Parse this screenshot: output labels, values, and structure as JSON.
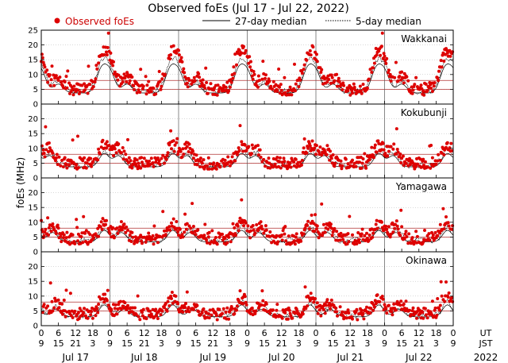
{
  "chart_data": {
    "type": "scatter",
    "title": "Observed foEs (Jul 17 - Jul 22, 2022)",
    "ylabel": "foEs (MHz)",
    "legend": {
      "observed": "Observed foEs",
      "median27": "27-day median",
      "median5": "5-day median"
    },
    "colors": {
      "observed": "#dd0000",
      "median27": "#000000",
      "median5": "#000000",
      "reference": "#b03030",
      "grid": "#b0b0b0"
    },
    "panels": [
      {
        "name": "Wakkanai",
        "ylim": [
          0,
          25
        ],
        "yticks": [
          "25",
          "20",
          "15",
          "10",
          "5",
          "0"
        ],
        "ref_lines": [
          8,
          5
        ]
      },
      {
        "name": "Kokubunji",
        "ylim": [
          0,
          25
        ],
        "yticks": [
          "20",
          "15",
          "10",
          "5",
          "0"
        ],
        "ref_lines": [
          8,
          5
        ]
      },
      {
        "name": "Yamagawa",
        "ylim": [
          0,
          25
        ],
        "yticks": [
          "20",
          "15",
          "10",
          "5",
          "0"
        ],
        "ref_lines": [
          8,
          5
        ]
      },
      {
        "name": "Okinawa",
        "ylim": [
          0,
          25
        ],
        "yticks": [
          "20",
          "15",
          "10",
          "5",
          "0"
        ],
        "ref_lines": [
          8,
          5
        ]
      }
    ],
    "x_axis": {
      "days": 6,
      "ut_ticks": [
        "0",
        "6",
        "12",
        "18",
        "0",
        "6",
        "12",
        "18",
        "0",
        "6",
        "12",
        "18",
        "0",
        "6",
        "12",
        "18",
        "0",
        "6",
        "12",
        "18",
        "0",
        "6",
        "12",
        "18",
        "0"
      ],
      "jst_ticks": [
        "9",
        "15",
        "21",
        "3",
        "9",
        "15",
        "21",
        "3",
        "9",
        "15",
        "21",
        "3",
        "9",
        "15",
        "21",
        "3",
        "9",
        "15",
        "21",
        "3",
        "9",
        "15",
        "21",
        "3",
        "9"
      ],
      "ut_label": "UT",
      "jst_label": "JST",
      "day_labels": [
        "Jul 17",
        "Jul 18",
        "Jul 19",
        "Jul 20",
        "Jul 21",
        "Jul 22"
      ],
      "year": "2022"
    },
    "series_profiles": {
      "Wakkanai": {
        "peak_hours": [
          6,
          9,
          15
        ],
        "peak_heights": [
          12,
          11,
          6
        ],
        "base": 5
      },
      "Kokubunji": {
        "peak_hours": [
          7,
          12
        ],
        "peak_heights": [
          8,
          7
        ],
        "base": 5
      },
      "Yamagawa": {
        "peak_hours": [
          7,
          13
        ],
        "peak_heights": [
          7,
          6
        ],
        "base": 4.5
      },
      "Okinawa": {
        "peak_hours": [
          7,
          14
        ],
        "peak_heights": [
          7,
          5
        ],
        "base": 4
      }
    }
  }
}
